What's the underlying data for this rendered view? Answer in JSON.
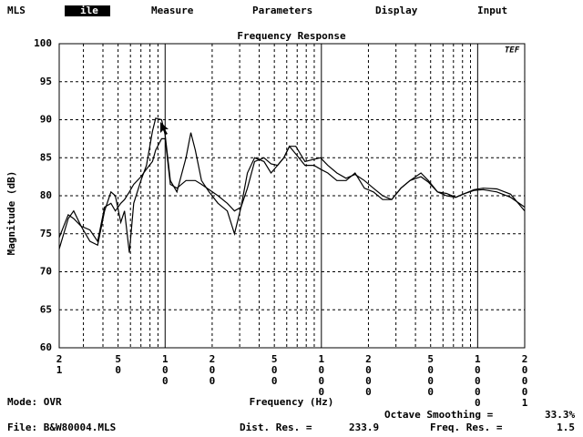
{
  "menu": [
    "MLS",
    "ile",
    "Measure",
    "Parameters",
    "Display",
    "Input"
  ],
  "chart_data": {
    "type": "line",
    "title": "Frequency Response",
    "x_label": "Frequency (Hz)",
    "y_label": "Magnitude (dB)",
    "logo": "TEF",
    "x": [
      21,
      24,
      26,
      29,
      33,
      37,
      41,
      45,
      48,
      52,
      55,
      59,
      63,
      70,
      76,
      83,
      87,
      95,
      100,
      108,
      119,
      136,
      146,
      156,
      171,
      191,
      218,
      250,
      278,
      306,
      336,
      374,
      429,
      476,
      524,
      575,
      624,
      686,
      785,
      897,
      986,
      1099,
      1256,
      1439,
      1644,
      1884,
      2153,
      2466,
      2818,
      3228,
      3690,
      4335,
      4831,
      5534,
      6324,
      7244,
      8279,
      9484,
      10840,
      13270,
      16250,
      20001
    ],
    "series": [
      {
        "color": "#000000",
        "values": [
          73,
          77,
          78,
          76,
          74,
          73.5,
          78,
          80.5,
          80,
          76.5,
          78,
          72.5,
          79,
          82,
          84,
          88.5,
          90.2,
          90,
          88,
          82,
          80.5,
          85,
          88.3,
          86,
          82,
          80.5,
          79,
          78,
          75,
          78.5,
          83,
          85,
          84.5,
          83,
          84,
          85,
          86.5,
          85.5,
          84,
          84,
          83.5,
          83,
          82,
          82,
          83,
          81,
          80.5,
          79.5,
          79.5,
          81,
          82,
          83,
          82,
          80.5,
          80.3,
          79.8,
          80.3,
          80.8,
          81,
          80.9,
          80.2,
          78
        ]
      },
      {
        "color": "#000000",
        "values": [
          74.5,
          77.5,
          77,
          76,
          75.5,
          74,
          78.5,
          79,
          78,
          79,
          79.5,
          80.5,
          81.5,
          82.5,
          83.5,
          84.5,
          86,
          87.5,
          87.5,
          81.5,
          81,
          82,
          82,
          82,
          81.5,
          80.8,
          80,
          79,
          78,
          78.5,
          81,
          84.5,
          85,
          84.2,
          84,
          85,
          86.5,
          86.5,
          84.5,
          84.8,
          85,
          84,
          83,
          82.3,
          82.8,
          82,
          81,
          80,
          79.5,
          81,
          82,
          82.5,
          81.8,
          80.5,
          80,
          79.8,
          80.3,
          80.7,
          80.8,
          80.5,
          79.8,
          78.5
        ]
      }
    ],
    "xlim": [
      21,
      20001
    ],
    "ylim": [
      60,
      100
    ],
    "xticks": [
      21,
      50,
      100,
      200,
      500,
      1000,
      2000,
      5000,
      10000,
      20001
    ],
    "yticks": [
      60,
      65,
      70,
      75,
      80,
      85,
      90,
      95,
      100
    ],
    "xscale": "log",
    "grid": true
  },
  "status": {
    "mode": "Mode: OVR",
    "file": "File: B&W80004.MLS",
    "octave_smoothing_label": "Octave Smoothing =",
    "octave_smoothing": "33.3%",
    "dist_res_label": "Dist. Res. =",
    "dist_res": 233.9,
    "freq_res_label": "Freq. Res. =",
    "freq_res": 1.5
  }
}
